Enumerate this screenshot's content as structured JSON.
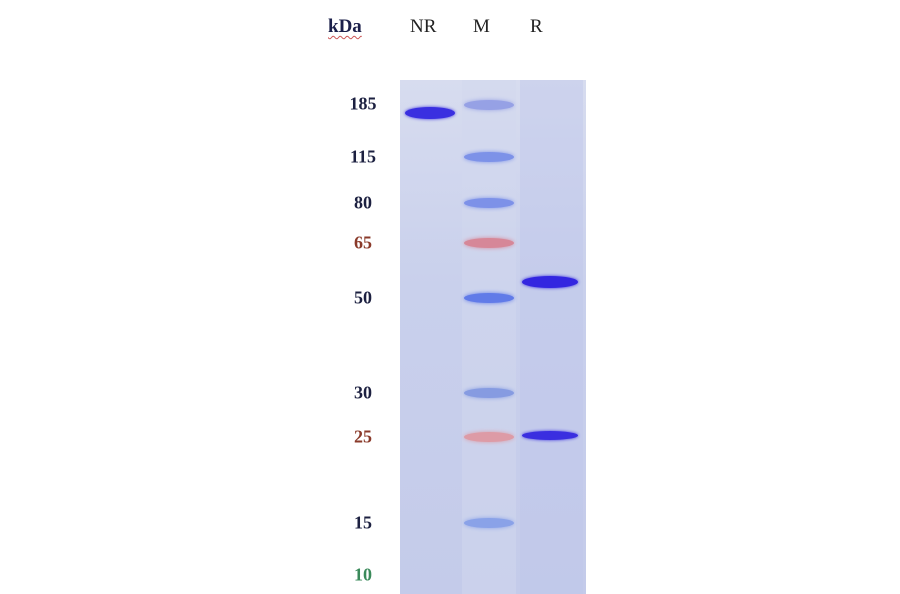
{
  "header": {
    "unit": "kDa",
    "lanes": [
      "NR",
      "M",
      "R"
    ]
  },
  "markers": [
    {
      "label": "185",
      "kda": 185,
      "color": "#6f7ce0",
      "label_color": "#1c2040"
    },
    {
      "label": "115",
      "kda": 115,
      "color": "#6f86e8",
      "label_color": "#1c2040"
    },
    {
      "label": "80",
      "kda": 80,
      "color": "#6f86e8",
      "label_color": "#1c2040"
    },
    {
      "label": "65",
      "kda": 65,
      "color": "#d87a8a",
      "label_color": "#8a3a2a"
    },
    {
      "label": "50",
      "kda": 50,
      "color": "#4f6ce8",
      "label_color": "#1c2040"
    },
    {
      "label": "30",
      "kda": 30,
      "color": "#7a92e0",
      "label_color": "#1c2040"
    },
    {
      "label": "25",
      "kda": 25,
      "color": "#e0929a",
      "label_color": "#8a3a2a"
    },
    {
      "label": "15",
      "kda": 15,
      "color": "#7f9ae8",
      "label_color": "#1c2040"
    },
    {
      "label": "10",
      "kda": 10,
      "color": "#c8d0ee",
      "label_color": "#3a8a5a"
    }
  ],
  "sample_bands": {
    "NR": [
      {
        "kda": 170,
        "color": "#3a2fe0",
        "intensity": 1.0
      }
    ],
    "R": [
      {
        "kda": 54,
        "color": "#3326e0",
        "intensity": 1.0
      },
      {
        "kda": 25,
        "color": "#3326e0",
        "intensity": 0.95
      }
    ]
  }
}
